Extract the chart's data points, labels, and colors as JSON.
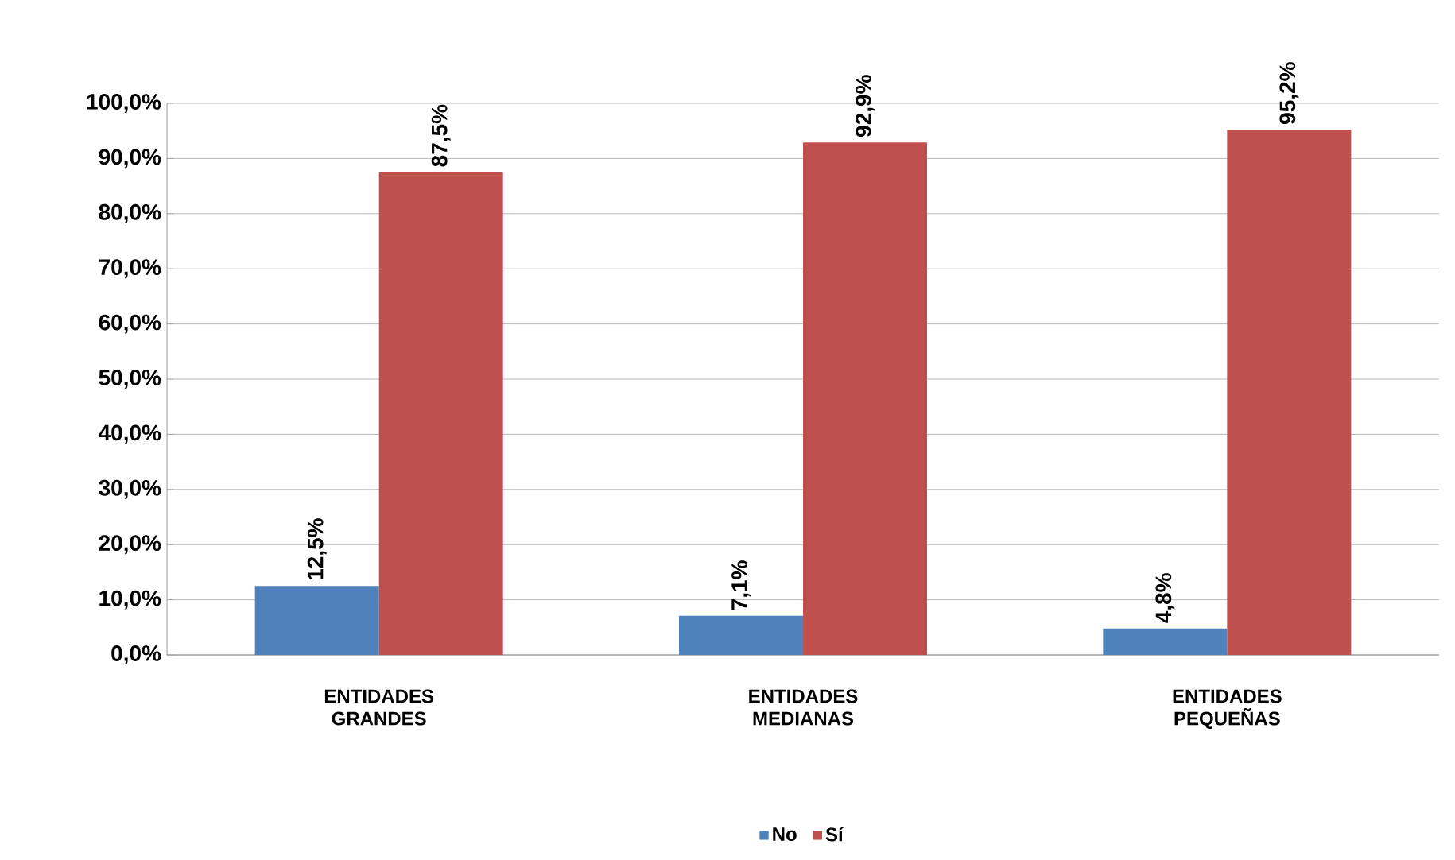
{
  "chart_data": {
    "type": "bar",
    "categories": [
      "ENTIDADES GRANDES",
      "ENTIDADES MEDIANAS",
      "ENTIDADES PEQUEÑAS"
    ],
    "series": [
      {
        "name": "No",
        "color": "#4f81bd",
        "values": [
          12.5,
          7.1,
          4.8
        ],
        "value_labels": [
          "12,5%",
          "7,1%",
          "4,8%"
        ]
      },
      {
        "name": "Sí",
        "color": "#c0504d",
        "values": [
          87.5,
          92.9,
          95.2
        ],
        "value_labels": [
          "87,5%",
          "92,9%",
          "95,2%"
        ]
      }
    ],
    "ylim": [
      0,
      100
    ],
    "yticks": [
      {
        "value": 0,
        "label": "0,0%"
      },
      {
        "value": 10,
        "label": "10,0%"
      },
      {
        "value": 20,
        "label": "20,0%"
      },
      {
        "value": 30,
        "label": "30,0%"
      },
      {
        "value": 40,
        "label": "40,0%"
      },
      {
        "value": 50,
        "label": "50,0%"
      },
      {
        "value": 60,
        "label": "60,0%"
      },
      {
        "value": 70,
        "label": "70,0%"
      },
      {
        "value": 80,
        "label": "80,0%"
      },
      {
        "value": 90,
        "label": "90,0%"
      },
      {
        "value": 100,
        "label": "100,0%"
      }
    ],
    "grid": "y",
    "legend": "bottom"
  }
}
